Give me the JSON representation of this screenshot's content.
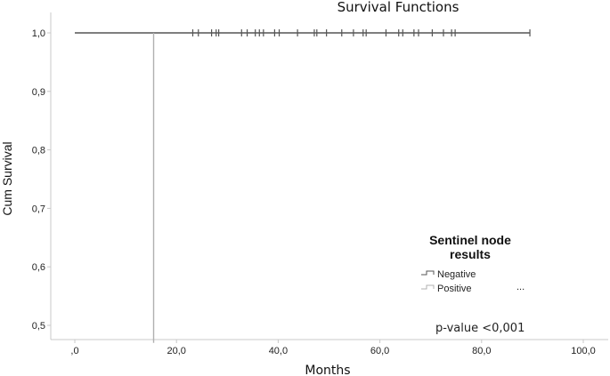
{
  "chart_data": {
    "type": "line",
    "title": "Survival Functions",
    "xlabel": "Months",
    "ylabel": "Cum Survival",
    "xlim": [
      -5,
      100
    ],
    "ylim": [
      0.47,
      1.01
    ],
    "x_ticks": [
      0,
      20,
      40,
      60,
      80,
      100
    ],
    "x_tick_labels": [
      ",0",
      "20,0",
      "40,0",
      "60,0",
      "80,0",
      "100,0"
    ],
    "y_ticks": [
      0.5,
      0.6,
      0.7,
      0.8,
      0.9,
      1.0
    ],
    "y_tick_labels": [
      "0,5",
      "0,6",
      "0,7",
      "0,8",
      "0,9",
      "1,0"
    ],
    "grid": false,
    "legend": {
      "title_line1": "Sentinel node",
      "title_line2": "results",
      "placement": "right",
      "items": [
        "Negative",
        "Positive"
      ],
      "dots": "..."
    },
    "annotation": "p-value <0,001",
    "series": [
      {
        "name": "Negative",
        "color": "#555555",
        "steps": [
          [
            0,
            1.0
          ],
          [
            89.5,
            1.0
          ]
        ],
        "censored_x": [
          23.2,
          24.3,
          26.9,
          27.8,
          28.3,
          32.8,
          33.9,
          35.5,
          36.3,
          37.1,
          39.3,
          40.2,
          43.8,
          47.1,
          47.6,
          49.5,
          52.5,
          54.8,
          56.7,
          57.3,
          61.2,
          63.7,
          64.5,
          66.7,
          67.6,
          70.3,
          72.5,
          74.1,
          74.8,
          89.5
        ]
      },
      {
        "name": "Positive",
        "color": "#b0b0b0",
        "steps": [
          [
            15.5,
            1.0
          ],
          [
            15.5,
            0.47
          ]
        ],
        "censored_x": []
      }
    ]
  }
}
